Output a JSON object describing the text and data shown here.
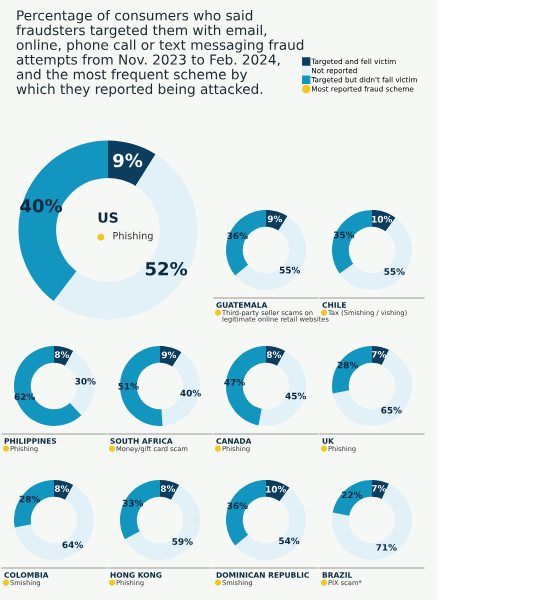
{
  "chart_data": [
    {
      "type": "donut",
      "title": "US",
      "subtitle": "Phishing",
      "annotations": [
        "Percentage of consumers who said\nfraudsters targeted them with email,\nonline, phone call or text messaging fraud\nattempts from Nov. 2023 to Feb. 2024,\nand the most frequent scheme by\nwhich they reported being attacked.",
        "Most reported fraud scheme"
      ],
      "legend": "top right",
      "categories": [
        "Targeted and fell victim",
        "Not reported",
        "Targeted but didn't fall victim"
      ],
      "values": [
        9,
        52,
        40
      ],
      "value_labels": [
        "9%",
        "52%",
        "40%"
      ],
      "colors": [
        "#0d3d5e",
        "#e2f0f8",
        "#1295bf"
      ]
    },
    {
      "type": "donut",
      "title": "GUATEMALA",
      "subtitle": "Third-party seller scams on\nlegitimate online retail websites",
      "categories": [
        null,
        null,
        null
      ],
      "values": [
        9,
        55,
        36
      ],
      "value_labels": [
        "9%",
        "55%",
        "36%"
      ],
      "colors": [
        "#0d3d5e",
        "#e2f0f8",
        "#1295bf"
      ]
    },
    {
      "type": "donut",
      "title": "CHILE",
      "subtitle": "Tax (Smishing / vishing)",
      "categories": [
        null,
        null,
        null
      ],
      "values": [
        10,
        55,
        35
      ],
      "value_labels": [
        "10%",
        "55%",
        "35%"
      ],
      "colors": [
        "#0d3d5e",
        "#e2f0f8",
        "#1295bf"
      ]
    },
    {
      "type": "donut",
      "title": "PHILIPPINES",
      "subtitle": "Phishing",
      "categories": [
        null,
        null,
        null
      ],
      "values": [
        8,
        30,
        62
      ],
      "value_labels": [
        "8%",
        "30%",
        "62%"
      ],
      "colors": [
        "#0d3d5e",
        "#e2f0f8",
        "#1295bf"
      ]
    },
    {
      "type": "donut",
      "title": "SOUTH AFRICA",
      "subtitle": "Money/gift card scam",
      "categories": [
        null,
        null,
        null
      ],
      "values": [
        9,
        40,
        51
      ],
      "value_labels": [
        "9%",
        "40%",
        "51%"
      ],
      "colors": [
        "#0d3d5e",
        "#e2f0f8",
        "#1295bf"
      ]
    },
    {
      "type": "donut",
      "title": "CANADA",
      "subtitle": "Phishing",
      "categories": [
        null,
        null,
        null
      ],
      "values": [
        8,
        45,
        47
      ],
      "value_labels": [
        "8%",
        "45%",
        "47%"
      ],
      "colors": [
        "#0d3d5e",
        "#e2f0f8",
        "#1295bf"
      ]
    },
    {
      "type": "donut",
      "title": "UK",
      "subtitle": "Phishing",
      "categories": [
        null,
        null,
        null
      ],
      "values": [
        7,
        65,
        28
      ],
      "value_labels": [
        "7%",
        "65%",
        "28%"
      ],
      "colors": [
        "#0d3d5e",
        "#e2f0f8",
        "#1295bf"
      ]
    },
    {
      "type": "donut",
      "title": "COLOMBIA",
      "subtitle": "Smishing",
      "categories": [
        null,
        null,
        null
      ],
      "values": [
        8,
        64,
        28
      ],
      "value_labels": [
        "8%",
        "64%",
        "28%"
      ],
      "colors": [
        "#0d3d5e",
        "#e2f0f8",
        "#1295bf"
      ]
    },
    {
      "type": "donut",
      "title": "HONG KONG",
      "subtitle": "Phishing",
      "categories": [
        null,
        null,
        null
      ],
      "values": [
        8,
        59,
        33
      ],
      "value_labels": [
        "8%",
        "59%",
        "33%"
      ],
      "colors": [
        "#0d3d5e",
        "#e2f0f8",
        "#1295bf"
      ]
    },
    {
      "type": "donut",
      "title": "DOMINICAN REPUBLIC",
      "subtitle": "Smishing",
      "categories": [
        null,
        null,
        null
      ],
      "values": [
        10,
        54,
        36
      ],
      "value_labels": [
        "10%",
        "54%",
        "36%"
      ],
      "colors": [
        "#0d3d5e",
        "#e2f0f8",
        "#1295bf"
      ]
    },
    {
      "type": "donut",
      "title": "BRAZIL",
      "subtitle": "PIX scam*",
      "categories": [
        null,
        null,
        null
      ],
      "values": [
        7,
        71,
        22
      ],
      "value_labels": [
        "7%",
        "71%",
        "22%"
      ],
      "colors": [
        "#0d3d5e",
        "#e2f0f8",
        "#1295bf"
      ]
    }
  ]
}
